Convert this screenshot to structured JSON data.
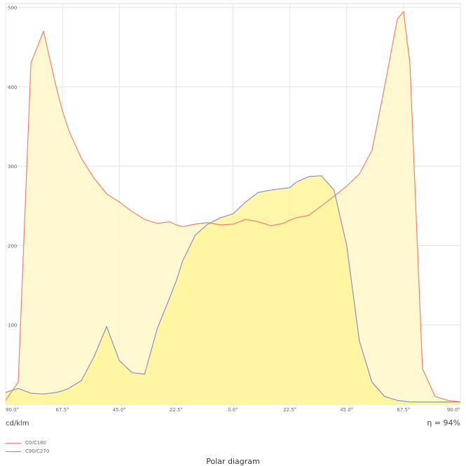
{
  "chart_data": {
    "type": "area",
    "x": [
      -90,
      -85,
      -80,
      -75,
      -70,
      -67.5,
      -65,
      -60,
      -55,
      -50,
      -45,
      -40,
      -35,
      -30,
      -25,
      -22.5,
      -20,
      -15,
      -10,
      -5,
      0,
      5,
      10,
      15,
      20,
      22.5,
      25,
      30,
      35,
      40,
      45,
      50,
      55,
      60,
      65,
      67.5,
      70,
      75,
      80,
      85,
      90
    ],
    "x_ticks": [
      -90,
      -67.5,
      -45,
      -22.5,
      0,
      22.5,
      45,
      67.5,
      90
    ],
    "x_tick_labels": [
      "90.0°",
      "67.5°",
      "45.0°",
      "22.5°",
      "0.0°",
      "22.5°",
      "45.0°",
      "67.5°",
      "90.0°"
    ],
    "y_ticks": [
      100,
      200,
      300,
      400,
      500
    ],
    "y_tick_labels": [
      "100",
      "200",
      "300",
      "400",
      "500"
    ],
    "xlim": [
      -90,
      90
    ],
    "ylim": [
      0,
      505
    ],
    "grid": true,
    "legend_position": "bottom-left",
    "series": [
      {
        "name": "C0/C180",
        "color": "#f08070",
        "fill": "#fff7cc",
        "values": [
          5,
          28,
          430,
          470,
          400,
          370,
          345,
          310,
          285,
          265,
          255,
          243,
          233,
          228,
          230,
          226,
          224,
          227,
          229,
          226,
          227,
          233,
          230,
          225,
          228,
          232,
          235,
          238,
          250,
          262,
          275,
          290,
          320,
          400,
          485,
          495,
          430,
          45,
          10,
          5,
          3
        ]
      },
      {
        "name": "C90/C270",
        "color": "#8a90c8",
        "fill": "#fff59a",
        "values": [
          15,
          20,
          14,
          13,
          15,
          17,
          20,
          30,
          60,
          98,
          55,
          40,
          38,
          95,
          135,
          155,
          180,
          213,
          227,
          235,
          240,
          255,
          267,
          270,
          272,
          273,
          280,
          287,
          288,
          270,
          200,
          80,
          28,
          10,
          5,
          4,
          3,
          3,
          3,
          3,
          3
        ]
      }
    ],
    "unit_label": "cd/klm",
    "efficiency_label": "η = 94%"
  },
  "caption": "Polar diagram"
}
